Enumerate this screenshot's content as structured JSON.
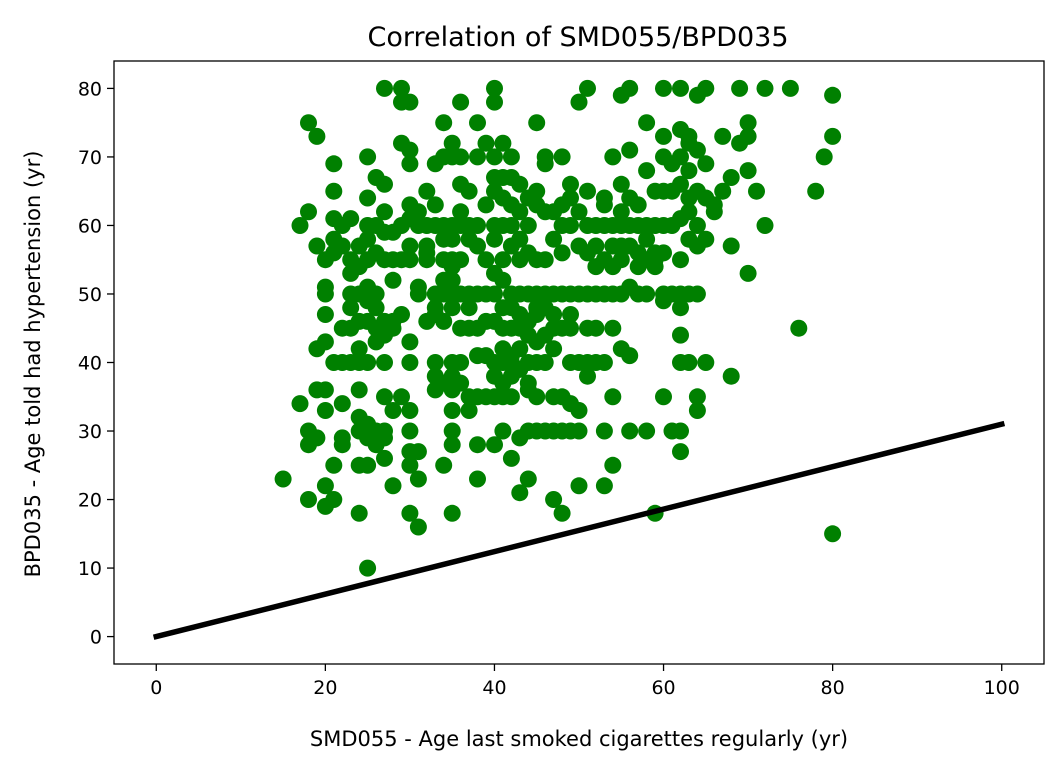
{
  "chart_data": {
    "type": "scatter",
    "title": "Correlation of SMD055/BPD035",
    "xlabel": "SMD055 - Age last smoked cigarettes regularly (yr)",
    "ylabel": "BPD035 - Age told had hypertension (yr)",
    "xlim": [
      -5,
      105
    ],
    "ylim": [
      -4,
      84
    ],
    "x_ticks": [
      0,
      20,
      40,
      60,
      80,
      100
    ],
    "y_ticks": [
      0,
      10,
      20,
      30,
      40,
      50,
      60,
      70,
      80
    ],
    "grid": false,
    "colors": {
      "points": "#008000",
      "line": "#000000"
    },
    "points": [
      [
        15,
        23
      ],
      [
        17,
        34
      ],
      [
        17,
        60
      ],
      [
        18,
        62
      ],
      [
        18,
        75
      ],
      [
        18,
        30
      ],
      [
        18,
        28
      ],
      [
        18,
        20
      ],
      [
        19,
        73
      ],
      [
        19,
        57
      ],
      [
        19,
        42
      ],
      [
        19,
        36
      ],
      [
        19,
        29
      ],
      [
        20,
        55
      ],
      [
        20,
        51
      ],
      [
        20,
        50
      ],
      [
        20,
        47
      ],
      [
        20,
        43
      ],
      [
        20,
        36
      ],
      [
        20,
        33
      ],
      [
        20,
        22
      ],
      [
        20,
        19
      ],
      [
        21,
        69
      ],
      [
        21,
        65
      ],
      [
        21,
        61
      ],
      [
        21,
        58
      ],
      [
        21,
        56
      ],
      [
        21,
        40
      ],
      [
        21,
        25
      ],
      [
        21,
        20
      ],
      [
        22,
        60
      ],
      [
        22,
        57
      ],
      [
        22,
        45
      ],
      [
        22,
        40
      ],
      [
        22,
        34
      ],
      [
        22,
        29
      ],
      [
        22,
        28
      ],
      [
        23,
        61
      ],
      [
        23,
        55
      ],
      [
        23,
        53
      ],
      [
        23,
        50
      ],
      [
        23,
        48
      ],
      [
        23,
        45
      ],
      [
        23,
        40
      ],
      [
        24,
        57
      ],
      [
        24,
        54
      ],
      [
        24,
        50
      ],
      [
        24,
        46
      ],
      [
        24,
        42
      ],
      [
        24,
        40
      ],
      [
        24,
        36
      ],
      [
        24,
        32
      ],
      [
        24,
        30
      ],
      [
        24,
        25
      ],
      [
        24,
        18
      ],
      [
        25,
        70
      ],
      [
        25,
        64
      ],
      [
        25,
        60
      ],
      [
        25,
        58
      ],
      [
        25,
        55
      ],
      [
        25,
        51
      ],
      [
        25,
        49
      ],
      [
        25,
        46
      ],
      [
        25,
        40
      ],
      [
        25,
        31
      ],
      [
        25,
        29
      ],
      [
        25,
        25
      ],
      [
        25,
        10
      ],
      [
        26,
        67
      ],
      [
        26,
        60
      ],
      [
        26,
        56
      ],
      [
        26,
        50
      ],
      [
        26,
        48
      ],
      [
        26,
        45
      ],
      [
        26,
        43
      ],
      [
        26,
        30
      ],
      [
        26,
        28
      ],
      [
        27,
        80
      ],
      [
        27,
        66
      ],
      [
        27,
        62
      ],
      [
        27,
        59
      ],
      [
        27,
        55
      ],
      [
        27,
        46
      ],
      [
        27,
        44
      ],
      [
        27,
        40
      ],
      [
        27,
        35
      ],
      [
        27,
        30
      ],
      [
        27,
        29
      ],
      [
        27,
        26
      ],
      [
        28,
        59
      ],
      [
        28,
        55
      ],
      [
        28,
        52
      ],
      [
        28,
        46
      ],
      [
        28,
        45
      ],
      [
        28,
        33
      ],
      [
        28,
        22
      ],
      [
        29,
        80
      ],
      [
        29,
        78
      ],
      [
        29,
        72
      ],
      [
        29,
        60
      ],
      [
        29,
        55
      ],
      [
        29,
        47
      ],
      [
        29,
        35
      ],
      [
        30,
        78
      ],
      [
        30,
        71
      ],
      [
        30,
        69
      ],
      [
        30,
        63
      ],
      [
        30,
        61
      ],
      [
        30,
        57
      ],
      [
        30,
        55
      ],
      [
        30,
        43
      ],
      [
        30,
        40
      ],
      [
        30,
        33
      ],
      [
        30,
        30
      ],
      [
        30,
        27
      ],
      [
        30,
        25
      ],
      [
        30,
        18
      ],
      [
        31,
        62
      ],
      [
        31,
        60
      ],
      [
        31,
        51
      ],
      [
        31,
        50
      ],
      [
        31,
        27
      ],
      [
        31,
        23
      ],
      [
        31,
        16
      ],
      [
        32,
        65
      ],
      [
        32,
        60
      ],
      [
        32,
        57
      ],
      [
        32,
        56
      ],
      [
        32,
        55
      ],
      [
        32,
        46
      ],
      [
        33,
        69
      ],
      [
        33,
        63
      ],
      [
        33,
        60
      ],
      [
        33,
        50
      ],
      [
        33,
        48
      ],
      [
        33,
        47
      ],
      [
        33,
        40
      ],
      [
        33,
        38
      ],
      [
        33,
        36
      ],
      [
        34,
        75
      ],
      [
        34,
        70
      ],
      [
        34,
        60
      ],
      [
        34,
        58
      ],
      [
        34,
        55
      ],
      [
        34,
        52
      ],
      [
        34,
        50
      ],
      [
        34,
        46
      ],
      [
        34,
        37
      ],
      [
        34,
        25
      ],
      [
        35,
        72
      ],
      [
        35,
        70
      ],
      [
        35,
        60
      ],
      [
        35,
        58
      ],
      [
        35,
        55
      ],
      [
        35,
        54
      ],
      [
        35,
        52
      ],
      [
        35,
        50
      ],
      [
        35,
        48
      ],
      [
        35,
        40
      ],
      [
        35,
        38
      ],
      [
        35,
        36
      ],
      [
        35,
        33
      ],
      [
        35,
        30
      ],
      [
        35,
        28
      ],
      [
        35,
        18
      ],
      [
        36,
        78
      ],
      [
        36,
        70
      ],
      [
        36,
        66
      ],
      [
        36,
        62
      ],
      [
        36,
        60
      ],
      [
        36,
        55
      ],
      [
        36,
        50
      ],
      [
        36,
        45
      ],
      [
        36,
        40
      ],
      [
        36,
        37
      ],
      [
        37,
        65
      ],
      [
        37,
        60
      ],
      [
        37,
        58
      ],
      [
        37,
        50
      ],
      [
        37,
        48
      ],
      [
        37,
        45
      ],
      [
        37,
        35
      ],
      [
        37,
        33
      ],
      [
        38,
        75
      ],
      [
        38,
        70
      ],
      [
        38,
        60
      ],
      [
        38,
        57
      ],
      [
        38,
        50
      ],
      [
        38,
        45
      ],
      [
        38,
        41
      ],
      [
        38,
        35
      ],
      [
        38,
        28
      ],
      [
        38,
        23
      ],
      [
        39,
        72
      ],
      [
        39,
        63
      ],
      [
        39,
        55
      ],
      [
        39,
        50
      ],
      [
        39,
        46
      ],
      [
        39,
        41
      ],
      [
        39,
        35
      ],
      [
        40,
        80
      ],
      [
        40,
        78
      ],
      [
        40,
        70
      ],
      [
        40,
        67
      ],
      [
        40,
        65
      ],
      [
        40,
        60
      ],
      [
        40,
        58
      ],
      [
        40,
        53
      ],
      [
        40,
        50
      ],
      [
        40,
        46
      ],
      [
        40,
        40
      ],
      [
        40,
        38
      ],
      [
        40,
        35
      ],
      [
        40,
        28
      ],
      [
        41,
        72
      ],
      [
        41,
        67
      ],
      [
        41,
        64
      ],
      [
        41,
        60
      ],
      [
        41,
        55
      ],
      [
        41,
        52
      ],
      [
        41,
        48
      ],
      [
        41,
        45
      ],
      [
        41,
        42
      ],
      [
        41,
        40
      ],
      [
        41,
        37
      ],
      [
        41,
        35
      ],
      [
        41,
        30
      ],
      [
        42,
        70
      ],
      [
        42,
        67
      ],
      [
        42,
        63
      ],
      [
        42,
        60
      ],
      [
        42,
        57
      ],
      [
        42,
        50
      ],
      [
        42,
        48
      ],
      [
        42,
        45
      ],
      [
        42,
        41
      ],
      [
        42,
        40
      ],
      [
        42,
        38
      ],
      [
        42,
        35
      ],
      [
        42,
        26
      ],
      [
        43,
        66
      ],
      [
        43,
        62
      ],
      [
        43,
        58
      ],
      [
        43,
        55
      ],
      [
        43,
        50
      ],
      [
        43,
        47
      ],
      [
        43,
        45
      ],
      [
        43,
        42
      ],
      [
        43,
        39
      ],
      [
        43,
        29
      ],
      [
        43,
        21
      ],
      [
        44,
        64
      ],
      [
        44,
        60
      ],
      [
        44,
        56
      ],
      [
        44,
        50
      ],
      [
        44,
        46
      ],
      [
        44,
        44
      ],
      [
        44,
        40
      ],
      [
        44,
        37
      ],
      [
        44,
        36
      ],
      [
        44,
        30
      ],
      [
        44,
        23
      ],
      [
        45,
        75
      ],
      [
        45,
        65
      ],
      [
        45,
        63
      ],
      [
        45,
        55
      ],
      [
        45,
        50
      ],
      [
        45,
        48
      ],
      [
        45,
        47
      ],
      [
        45,
        43
      ],
      [
        45,
        40
      ],
      [
        45,
        35
      ],
      [
        45,
        30
      ],
      [
        46,
        70
      ],
      [
        46,
        69
      ],
      [
        46,
        62
      ],
      [
        46,
        55
      ],
      [
        46,
        50
      ],
      [
        46,
        48
      ],
      [
        46,
        44
      ],
      [
        46,
        40
      ],
      [
        46,
        30
      ],
      [
        47,
        62
      ],
      [
        47,
        58
      ],
      [
        47,
        50
      ],
      [
        47,
        47
      ],
      [
        47,
        45
      ],
      [
        47,
        42
      ],
      [
        47,
        35
      ],
      [
        47,
        30
      ],
      [
        47,
        20
      ],
      [
        48,
        70
      ],
      [
        48,
        63
      ],
      [
        48,
        60
      ],
      [
        48,
        56
      ],
      [
        48,
        50
      ],
      [
        48,
        45
      ],
      [
        48,
        35
      ],
      [
        48,
        30
      ],
      [
        48,
        18
      ],
      [
        49,
        66
      ],
      [
        49,
        64
      ],
      [
        49,
        60
      ],
      [
        49,
        50
      ],
      [
        49,
        47
      ],
      [
        49,
        45
      ],
      [
        49,
        40
      ],
      [
        49,
        34
      ],
      [
        49,
        30
      ],
      [
        50,
        78
      ],
      [
        50,
        62
      ],
      [
        50,
        57
      ],
      [
        50,
        50
      ],
      [
        50,
        40
      ],
      [
        50,
        33
      ],
      [
        50,
        30
      ],
      [
        50,
        22
      ],
      [
        51,
        80
      ],
      [
        51,
        65
      ],
      [
        51,
        60
      ],
      [
        51,
        56
      ],
      [
        51,
        50
      ],
      [
        51,
        45
      ],
      [
        51,
        40
      ],
      [
        51,
        38
      ],
      [
        52,
        60
      ],
      [
        52,
        57
      ],
      [
        52,
        54
      ],
      [
        52,
        50
      ],
      [
        52,
        45
      ],
      [
        52,
        40
      ],
      [
        53,
        64
      ],
      [
        53,
        63
      ],
      [
        53,
        60
      ],
      [
        53,
        55
      ],
      [
        53,
        50
      ],
      [
        53,
        40
      ],
      [
        53,
        30
      ],
      [
        53,
        22
      ],
      [
        54,
        70
      ],
      [
        54,
        60
      ],
      [
        54,
        57
      ],
      [
        54,
        54
      ],
      [
        54,
        50
      ],
      [
        54,
        45
      ],
      [
        54,
        35
      ],
      [
        54,
        25
      ],
      [
        55,
        79
      ],
      [
        55,
        66
      ],
      [
        55,
        62
      ],
      [
        55,
        60
      ],
      [
        55,
        57
      ],
      [
        55,
        55
      ],
      [
        55,
        50
      ],
      [
        55,
        42
      ],
      [
        56,
        80
      ],
      [
        56,
        71
      ],
      [
        56,
        64
      ],
      [
        56,
        60
      ],
      [
        56,
        57
      ],
      [
        56,
        51
      ],
      [
        56,
        41
      ],
      [
        56,
        30
      ],
      [
        57,
        63
      ],
      [
        57,
        60
      ],
      [
        57,
        56
      ],
      [
        57,
        54
      ],
      [
        57,
        50
      ],
      [
        58,
        75
      ],
      [
        58,
        68
      ],
      [
        58,
        60
      ],
      [
        58,
        58
      ],
      [
        58,
        55
      ],
      [
        58,
        50
      ],
      [
        58,
        30
      ],
      [
        59,
        65
      ],
      [
        59,
        60
      ],
      [
        59,
        56
      ],
      [
        59,
        55
      ],
      [
        59,
        54
      ],
      [
        59,
        18
      ],
      [
        60,
        80
      ],
      [
        60,
        73
      ],
      [
        60,
        70
      ],
      [
        60,
        65
      ],
      [
        60,
        60
      ],
      [
        60,
        56
      ],
      [
        60,
        50
      ],
      [
        60,
        49
      ],
      [
        60,
        35
      ],
      [
        61,
        69
      ],
      [
        61,
        65
      ],
      [
        61,
        60
      ],
      [
        61,
        50
      ],
      [
        61,
        30
      ],
      [
        62,
        80
      ],
      [
        62,
        74
      ],
      [
        62,
        70
      ],
      [
        62,
        66
      ],
      [
        62,
        61
      ],
      [
        62,
        55
      ],
      [
        62,
        50
      ],
      [
        62,
        48
      ],
      [
        62,
        44
      ],
      [
        62,
        40
      ],
      [
        62,
        30
      ],
      [
        62,
        27
      ],
      [
        63,
        73
      ],
      [
        63,
        72
      ],
      [
        63,
        68
      ],
      [
        63,
        64
      ],
      [
        63,
        62
      ],
      [
        63,
        58
      ],
      [
        63,
        50
      ],
      [
        63,
        40
      ],
      [
        64,
        79
      ],
      [
        64,
        71
      ],
      [
        64,
        65
      ],
      [
        64,
        60
      ],
      [
        64,
        57
      ],
      [
        64,
        50
      ],
      [
        64,
        35
      ],
      [
        64,
        33
      ],
      [
        65,
        80
      ],
      [
        65,
        69
      ],
      [
        65,
        64
      ],
      [
        65,
        58
      ],
      [
        65,
        40
      ],
      [
        66,
        63
      ],
      [
        66,
        62
      ],
      [
        67,
        73
      ],
      [
        67,
        65
      ],
      [
        68,
        67
      ],
      [
        68,
        57
      ],
      [
        68,
        38
      ],
      [
        69,
        80
      ],
      [
        69,
        72
      ],
      [
        70,
        75
      ],
      [
        70,
        73
      ],
      [
        70,
        68
      ],
      [
        70,
        53
      ],
      [
        71,
        65
      ],
      [
        72,
        80
      ],
      [
        72,
        60
      ],
      [
        75,
        80
      ],
      [
        76,
        45
      ],
      [
        78,
        65
      ],
      [
        79,
        70
      ],
      [
        80,
        79
      ],
      [
        80,
        73
      ],
      [
        80,
        15
      ]
    ],
    "line": {
      "x": [
        0,
        100
      ],
      "y": [
        0,
        31
      ]
    }
  }
}
